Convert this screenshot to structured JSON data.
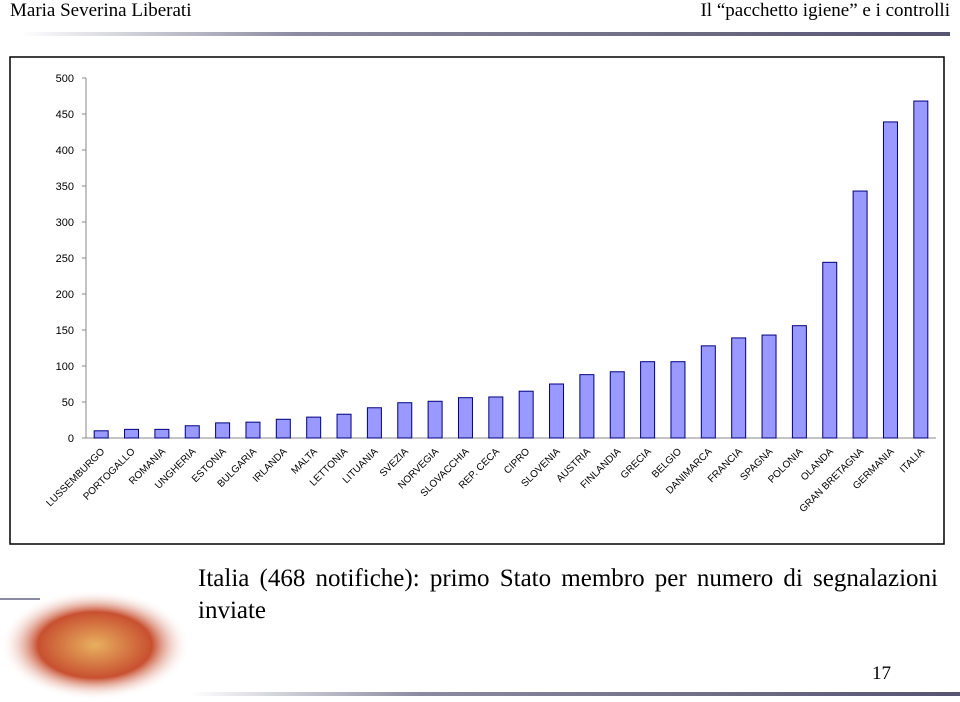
{
  "header": {
    "author": "Maria Severina Liberati",
    "title": "Il “pacchetto igiene” e i controlli"
  },
  "chart_data": {
    "type": "bar",
    "categories": [
      "LUSSEMBURGO",
      "PORTOGALLO",
      "ROMANIA",
      "UNGHERIA",
      "ESTONIA",
      "BULGARIA",
      "IRLANDA",
      "MALTA",
      "LETTONIA",
      "LITUANIA",
      "SVEZIA",
      "NORVEGIA",
      "SLOVACCHIA",
      "REP. CECA",
      "CIPRO",
      "SLOVENIA",
      "AUSTRIA",
      "FINLANDIA",
      "GRECIA",
      "BELGIO",
      "DANIMARCA",
      "FRANCIA",
      "SPAGNA",
      "POLONIA",
      "OLANDA",
      "GRAN BRETAGNA",
      "GERMANIA",
      "ITALIA"
    ],
    "values": [
      10,
      12,
      12,
      17,
      21,
      22,
      26,
      29,
      33,
      42,
      49,
      51,
      56,
      57,
      65,
      75,
      88,
      92,
      106,
      106,
      128,
      139,
      143,
      156,
      244,
      343,
      439,
      468
    ],
    "color": "#9999ff",
    "ylim": [
      0,
      500
    ],
    "yticks": [
      0,
      50,
      100,
      150,
      200,
      250,
      300,
      350,
      400,
      450,
      500
    ],
    "grid": false
  },
  "caption": "Italia (468 notifiche): primo Stato membro per numero di segnalazioni inviate",
  "page_number": "17"
}
